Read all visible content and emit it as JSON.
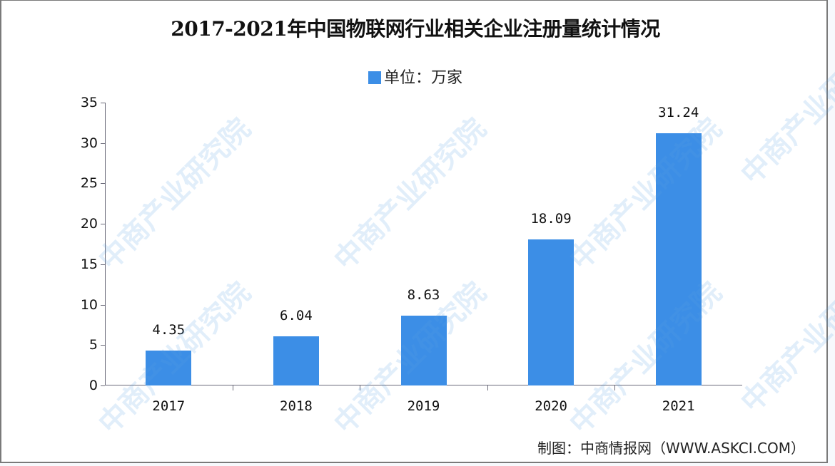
{
  "title": "2017-2021年中国物联网行业相关企业注册量统计情况",
  "legend": {
    "label": "单位：万家",
    "color": "#3c8ee6"
  },
  "source": "制图：中商情报网（WWW.ASKCI.COM）",
  "watermark": "中商产业研究院",
  "y_ticks": [
    "0",
    "5",
    "10",
    "15",
    "20",
    "25",
    "30",
    "35"
  ],
  "bars": [
    {
      "year": "2017",
      "value": "4.35"
    },
    {
      "year": "2018",
      "value": "6.04"
    },
    {
      "year": "2019",
      "value": "8.63"
    },
    {
      "year": "2020",
      "value": "18.09"
    },
    {
      "year": "2021",
      "value": "31.24"
    }
  ],
  "chart_data": {
    "type": "bar",
    "title": "2017-2021年中国物联网行业相关企业注册量统计情况",
    "categories": [
      "2017",
      "2018",
      "2019",
      "2020",
      "2021"
    ],
    "series": [
      {
        "name": "单位：万家",
        "values": [
          4.35,
          6.04,
          8.63,
          18.09,
          31.24
        ]
      }
    ],
    "xlabel": "",
    "ylabel": "万家",
    "ylim": [
      0,
      35
    ],
    "yticks": [
      0,
      5,
      10,
      15,
      20,
      25,
      30,
      35
    ],
    "grid": false,
    "legend_position": "top",
    "data_labels": true,
    "bar_color": "#3c8ee6",
    "annotations": [
      "制图：中商情报网（WWW.ASKCI.COM）"
    ]
  }
}
